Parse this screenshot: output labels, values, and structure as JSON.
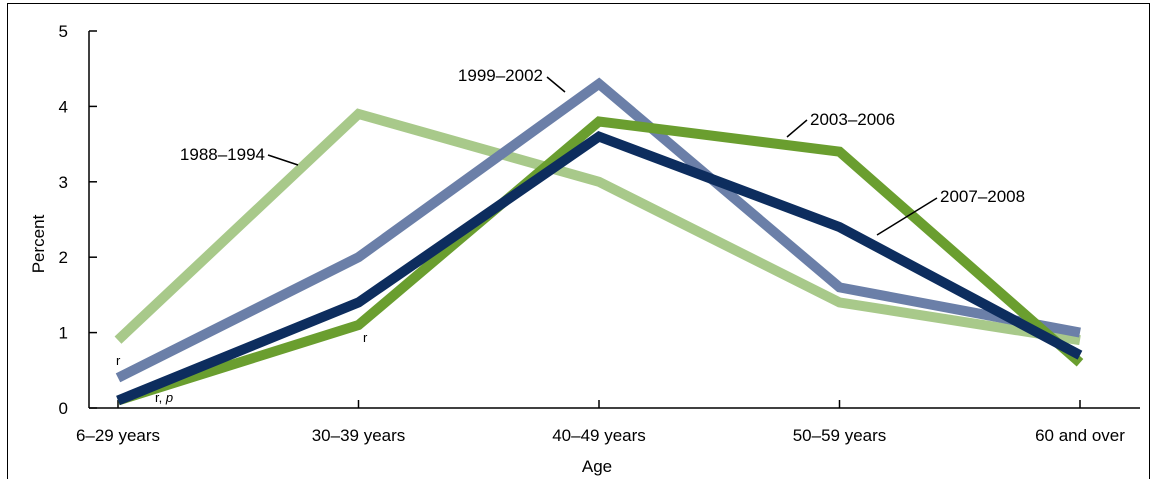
{
  "chart_data": {
    "type": "line",
    "xlabel": "Age",
    "ylabel": "Percent",
    "ylim": [
      0,
      5
    ],
    "yticks": [
      "0",
      "1",
      "2",
      "3",
      "4",
      "5"
    ],
    "categories": [
      "6–29 years",
      "30–39 years",
      "40–49 years",
      "50–59 years",
      "60 and over"
    ],
    "grid": false,
    "series": [
      {
        "name": "1988–1994",
        "color": "#a8c98a",
        "values": [
          0.9,
          3.9,
          3.0,
          1.4,
          0.9
        ]
      },
      {
        "name": "1999–2002",
        "color": "#6b7fa8",
        "values": [
          0.4,
          2.0,
          4.3,
          1.6,
          1.0
        ]
      },
      {
        "name": "2003–2006",
        "color": "#6a9e2f",
        "values": [
          0.1,
          1.1,
          3.8,
          3.4,
          0.6
        ]
      },
      {
        "name": "2007–2008",
        "color": "#0d2d5e",
        "values": [
          0.1,
          1.4,
          3.6,
          2.4,
          0.7
        ]
      }
    ],
    "annotations": [
      {
        "text": "r",
        "series": "1999–2002",
        "category": "6–29 years"
      },
      {
        "text": "r, ",
        "italic_suffix": "p",
        "series": "2003–2006",
        "category": "6–29 years"
      },
      {
        "text": "r",
        "series": "2003–2006",
        "category": "30–39 years"
      }
    ]
  }
}
